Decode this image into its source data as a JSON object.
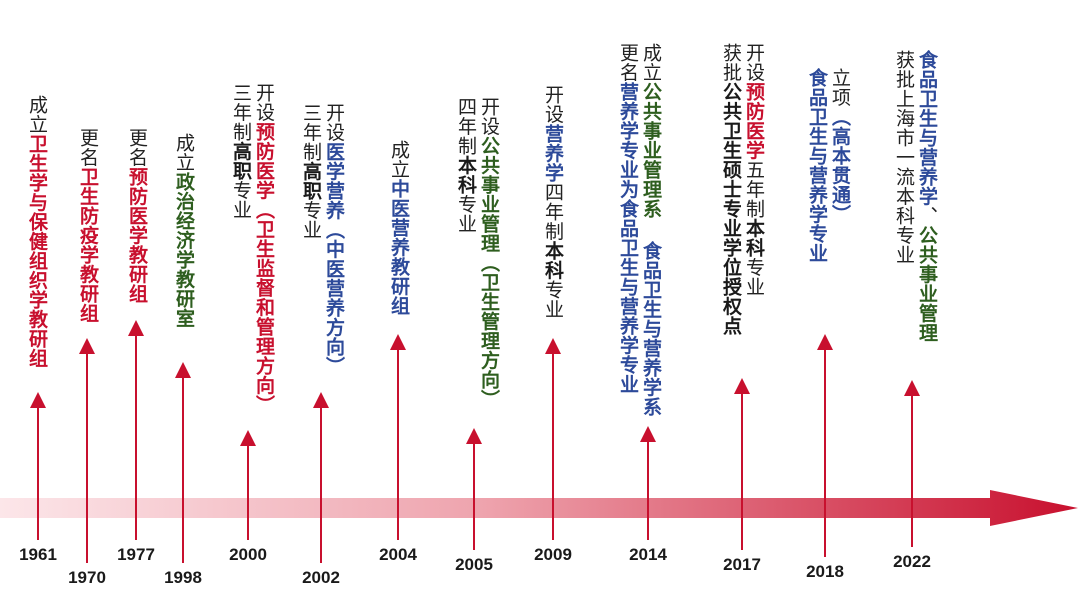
{
  "colors": {
    "red": "#c8102e",
    "blue": "#2d4a9a",
    "green": "#2e5e1f",
    "black": "#1a1a1a",
    "arrow_start": "#fbe3e6",
    "arrow_end": "#c8102e"
  },
  "years": [
    "1961",
    "1970",
    "1977",
    "1998",
    "2000",
    "2002",
    "2004",
    "2005",
    "2009",
    "2014",
    "2017",
    "2018",
    "2022"
  ],
  "events": [
    {
      "year": "1961",
      "lines": [
        {
          "verb": "成立",
          "segments": [
            {
              "text": "卫生学与保健组织学教研组",
              "style": "red"
            }
          ]
        }
      ]
    },
    {
      "year": "1970",
      "lines": [
        {
          "verb": "更名",
          "segments": [
            {
              "text": "卫生防疫学教研组",
              "style": "red"
            }
          ]
        }
      ]
    },
    {
      "year": "1977",
      "lines": [
        {
          "verb": "更名",
          "segments": [
            {
              "text": "预防医学教研组",
              "style": "red"
            }
          ]
        }
      ]
    },
    {
      "year": "1998",
      "lines": [
        {
          "verb": "成立",
          "segments": [
            {
              "text": "政治经济学教研室",
              "style": "green"
            }
          ]
        }
      ]
    },
    {
      "year": "2000",
      "lines": [
        {
          "verb": "开设",
          "segments": [
            {
              "text": "预防医学（卫生监督和管理方向）",
              "style": "red"
            }
          ]
        },
        {
          "verb": "",
          "segments": [
            {
              "text": "三年制",
              "style": "plain"
            },
            {
              "text": "高职",
              "style": "black-bold"
            },
            {
              "text": "专业",
              "style": "plain"
            }
          ]
        }
      ]
    },
    {
      "year": "2002",
      "lines": [
        {
          "verb": "开设",
          "segments": [
            {
              "text": "医学营养（中医营养方向）",
              "style": "blue"
            }
          ]
        },
        {
          "verb": "",
          "segments": [
            {
              "text": "三年制",
              "style": "plain"
            },
            {
              "text": "高职",
              "style": "black-bold"
            },
            {
              "text": "专业",
              "style": "plain"
            }
          ]
        }
      ]
    },
    {
      "year": "2004",
      "lines": [
        {
          "verb": "成立",
          "segments": [
            {
              "text": "中医营养教研组",
              "style": "blue"
            }
          ]
        }
      ]
    },
    {
      "year": "2005",
      "lines": [
        {
          "verb": "开设",
          "segments": [
            {
              "text": "公共事业管理（卫生管理方向）",
              "style": "green"
            }
          ]
        },
        {
          "verb": "",
          "segments": [
            {
              "text": "四年制",
              "style": "plain"
            },
            {
              "text": "本科",
              "style": "black-bold"
            },
            {
              "text": "专业",
              "style": "plain"
            }
          ]
        }
      ]
    },
    {
      "year": "2009",
      "lines": [
        {
          "verb": "开设",
          "segments": [
            {
              "text": "营养学",
              "style": "blue"
            },
            {
              "text": "四年制",
              "style": "plain"
            },
            {
              "text": "本科",
              "style": "black-bold"
            },
            {
              "text": "专业",
              "style": "plain"
            }
          ]
        }
      ]
    },
    {
      "year": "2014",
      "lines": [
        {
          "verb": "成立",
          "segments": [
            {
              "text": "公共事业管理系",
              "style": "green"
            },
            {
              "text": " 食品卫生与营养学系",
              "style": "blue"
            }
          ]
        },
        {
          "verb": "更名",
          "segments": [
            {
              "text": "营养学专业为食品卫生与营养学专业",
              "style": "blue"
            }
          ]
        }
      ]
    },
    {
      "year": "2017",
      "lines": [
        {
          "verb": "开设",
          "segments": [
            {
              "text": "预防医学",
              "style": "red"
            },
            {
              "text": "五年制",
              "style": "plain"
            },
            {
              "text": "本科",
              "style": "black-bold"
            },
            {
              "text": "专业",
              "style": "plain"
            }
          ]
        },
        {
          "verb": "获批",
          "segments": [
            {
              "text": "公共卫生硕士专业学位授权点",
              "style": "black-bold"
            }
          ]
        }
      ]
    },
    {
      "year": "2018",
      "lines": [
        {
          "verb": "立项",
          "segments": [
            {
              "text": "（高本贯通）",
              "style": "blue"
            }
          ]
        },
        {
          "verb": "",
          "segments": [
            {
              "text": "食品卫生与营养学专业",
              "style": "blue"
            }
          ]
        }
      ]
    },
    {
      "year": "2022",
      "lines": [
        {
          "verb": "",
          "segments": [
            {
              "text": "食品卫生与营养学",
              "style": "blue"
            },
            {
              "text": "、",
              "style": "plain"
            },
            {
              "text": "公共事业管理",
              "style": "green"
            }
          ]
        },
        {
          "verb": "获批",
          "segments": [
            {
              "text": "上海市一流本科专业",
              "style": "plain"
            }
          ]
        }
      ]
    }
  ]
}
